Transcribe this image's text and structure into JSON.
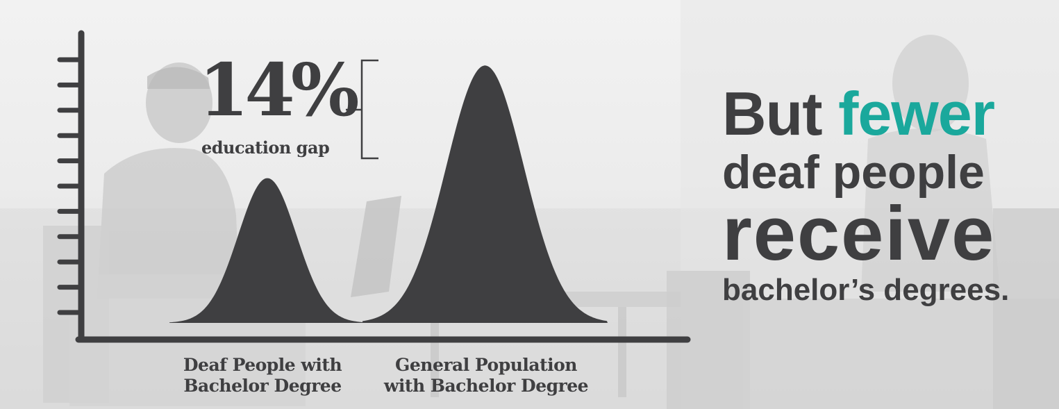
{
  "colors": {
    "ink": "#3f3f41",
    "accent": "#1aa89c",
    "background": "#ececec"
  },
  "gap": {
    "value": "14%",
    "caption": "education gap"
  },
  "headline": {
    "line1_plain": "But",
    "line1_accent": "fewer",
    "line2": "deaf people",
    "line3": "receive",
    "line4": "bachelor’s degrees."
  },
  "chart_data": {
    "type": "area",
    "title": "",
    "categories": [
      "Deaf People with\nBachelor Degree",
      "General Population\nwith Bachelor Degree"
    ],
    "values": [
      18,
      32
    ],
    "ylim": [
      0,
      36
    ],
    "y_ticks": 11,
    "grid": false,
    "legend": "none",
    "color": "#3f3f41"
  }
}
